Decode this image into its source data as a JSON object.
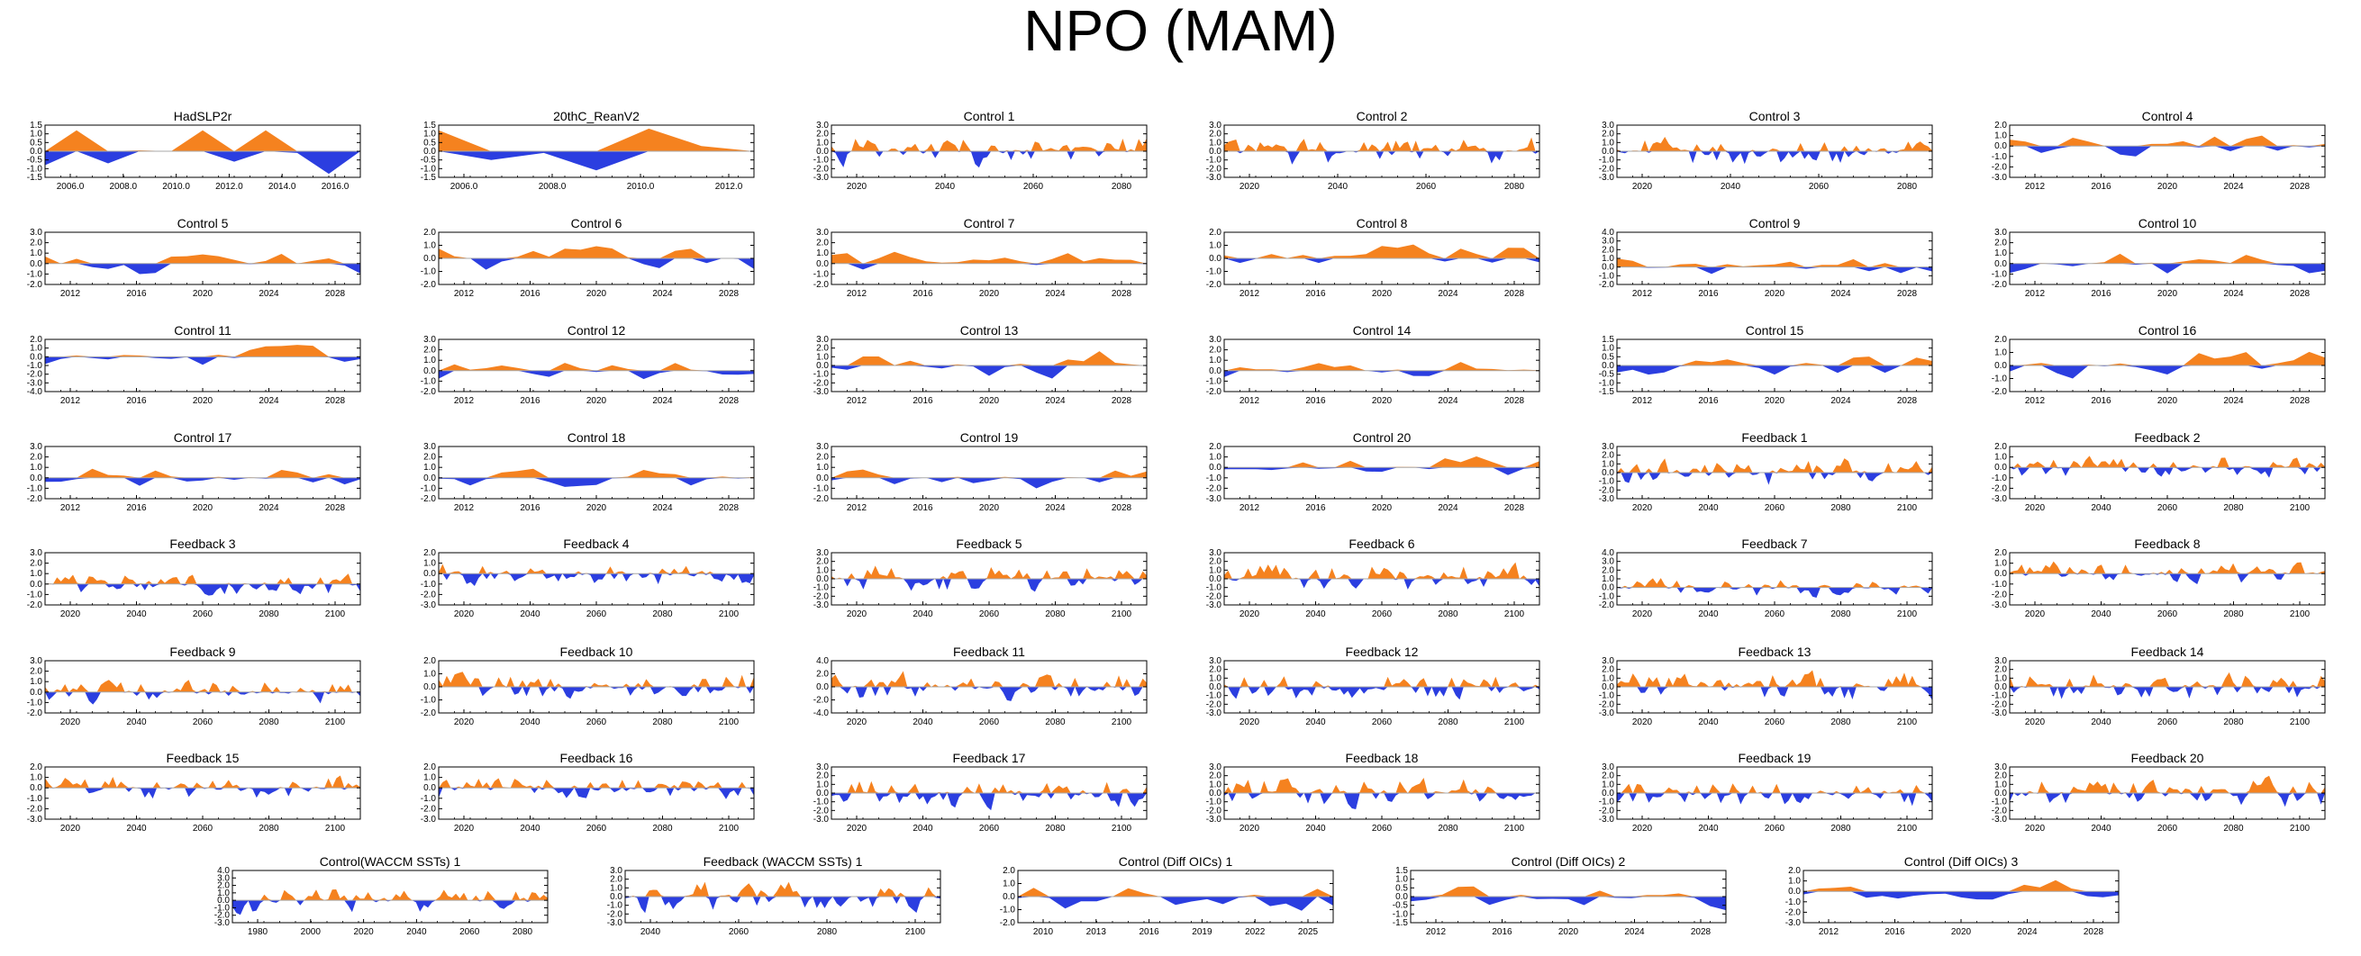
{
  "title": "NPO (MAM)",
  "colors": {
    "positive": "#f5821f",
    "negative": "#2b3ee0",
    "axis": "#000000",
    "zero_line": "#a9a9a9"
  },
  "chart_data": [
    {
      "type": "area",
      "title": "HadSLP2r",
      "x_ticks": [
        "2006.0",
        "2008.0",
        "2010.0",
        "2012.0",
        "2014.0",
        "2016.0"
      ],
      "y_ticks": [
        "1.5",
        "1.0",
        "0.5",
        "0.0",
        "-0.5",
        "-1.0",
        "-1.5"
      ],
      "ylim": [
        -1.5,
        1.5
      ],
      "values": [
        -0.8,
        1.2,
        -0.7,
        0.05,
        0.0,
        1.2,
        -0.6,
        1.2,
        -0.1,
        -1.3,
        0.0
      ]
    },
    {
      "type": "area",
      "title": "20thC_ReanV2",
      "x_ticks": [
        "2006.0",
        "2008.0",
        "2010.0",
        "2012.0"
      ],
      "y_ticks": [
        "1.5",
        "1.0",
        "0.5",
        "0.0",
        "-0.5",
        "-1.0",
        "-1.5"
      ],
      "ylim": [
        -1.5,
        1.5
      ],
      "values": [
        1.2,
        -0.5,
        -0.1,
        -1.1,
        1.3,
        0.3,
        0.0
      ]
    },
    {
      "type": "area",
      "title": "Control 1",
      "x_ticks": [
        "2020",
        "2040",
        "2060",
        "2080"
      ],
      "y_ticks": [
        "3.0",
        "2.0",
        "1.0",
        "0.0",
        "-1.0",
        "-2.0",
        "-3.0"
      ],
      "ylim": [
        -3,
        3
      ],
      "values": []
    },
    {
      "type": "area",
      "title": "Control 2",
      "x_ticks": [
        "2020",
        "2040",
        "2060",
        "2080"
      ],
      "y_ticks": [
        "3.0",
        "2.0",
        "1.0",
        "0.0",
        "-1.0",
        "-2.0",
        "-3.0"
      ],
      "ylim": [
        -3,
        3
      ],
      "values": []
    },
    {
      "type": "area",
      "title": "Control 3",
      "x_ticks": [
        "2020",
        "2040",
        "2060",
        "2080"
      ],
      "y_ticks": [
        "3.0",
        "2.0",
        "1.0",
        "0.0",
        "-1.0",
        "-2.0",
        "-3.0"
      ],
      "ylim": [
        -3,
        3
      ],
      "values": []
    },
    {
      "type": "area",
      "title": "Control 4",
      "x_ticks": [
        "2012",
        "2016",
        "2020",
        "2024",
        "2028"
      ],
      "y_ticks": [
        "2.0",
        "1.0",
        "0.0",
        "-1.0",
        "-2.0",
        "-3.0"
      ],
      "ylim": [
        -3,
        2
      ],
      "values": []
    },
    {
      "type": "area",
      "title": "Control 5",
      "x_ticks": [
        "2012",
        "2016",
        "2020",
        "2024",
        "2028"
      ],
      "y_ticks": [
        "3.0",
        "2.0",
        "1.0",
        "0.0",
        "-1.0",
        "-2.0"
      ],
      "ylim": [
        -2,
        3
      ],
      "values": []
    },
    {
      "type": "area",
      "title": "Control 6",
      "x_ticks": [
        "2012",
        "2016",
        "2020",
        "2024",
        "2028"
      ],
      "y_ticks": [
        "2.0",
        "1.0",
        "0.0",
        "-1.0",
        "-2.0"
      ],
      "ylim": [
        -2,
        2
      ],
      "values": []
    },
    {
      "type": "area",
      "title": "Control 7",
      "x_ticks": [
        "2012",
        "2016",
        "2020",
        "2024",
        "2028"
      ],
      "y_ticks": [
        "3.0",
        "2.0",
        "1.0",
        "0.0",
        "-1.0",
        "-2.0"
      ],
      "ylim": [
        -2,
        3
      ],
      "values": []
    },
    {
      "type": "area",
      "title": "Control 8",
      "x_ticks": [
        "2012",
        "2016",
        "2020",
        "2024",
        "2028"
      ],
      "y_ticks": [
        "2.0",
        "1.0",
        "0.0",
        "-1.0",
        "-2.0"
      ],
      "ylim": [
        -2,
        2
      ],
      "values": []
    },
    {
      "type": "area",
      "title": "Control 9",
      "x_ticks": [
        "2012",
        "2016",
        "2020",
        "2024",
        "2028"
      ],
      "y_ticks": [
        "4.0",
        "3.0",
        "2.0",
        "1.0",
        "0.0",
        "-1.0",
        "-2.0"
      ],
      "ylim": [
        -2,
        4
      ],
      "values": []
    },
    {
      "type": "area",
      "title": "Control 10",
      "x_ticks": [
        "2012",
        "2016",
        "2020",
        "2024",
        "2028"
      ],
      "y_ticks": [
        "3.0",
        "2.0",
        "1.0",
        "0.0",
        "-1.0",
        "-2.0"
      ],
      "ylim": [
        -2,
        3
      ],
      "values": []
    },
    {
      "type": "area",
      "title": "Control 11",
      "x_ticks": [
        "2012",
        "2016",
        "2020",
        "2024",
        "2028"
      ],
      "y_ticks": [
        "2.0",
        "1.0",
        "0.0",
        "-1.0",
        "-2.0",
        "-3.0",
        "-4.0"
      ],
      "ylim": [
        -4,
        2
      ],
      "values": []
    },
    {
      "type": "area",
      "title": "Control 12",
      "x_ticks": [
        "2012",
        "2016",
        "2020",
        "2024",
        "2028"
      ],
      "y_ticks": [
        "3.0",
        "2.0",
        "1.0",
        "0.0",
        "-1.0",
        "-2.0"
      ],
      "ylim": [
        -2,
        3
      ],
      "values": []
    },
    {
      "type": "area",
      "title": "Control 13",
      "x_ticks": [
        "2012",
        "2016",
        "2020",
        "2024",
        "2028"
      ],
      "y_ticks": [
        "3.0",
        "2.0",
        "1.0",
        "0.0",
        "-1.0",
        "-2.0",
        "-3.0"
      ],
      "ylim": [
        -3,
        3
      ],
      "values": []
    },
    {
      "type": "area",
      "title": "Control 14",
      "x_ticks": [
        "2012",
        "2016",
        "2020",
        "2024",
        "2028"
      ],
      "y_ticks": [
        "3.0",
        "2.0",
        "1.0",
        "0.0",
        "-1.0",
        "-2.0"
      ],
      "ylim": [
        -2,
        3
      ],
      "values": []
    },
    {
      "type": "area",
      "title": "Control 15",
      "x_ticks": [
        "2012",
        "2016",
        "2020",
        "2024",
        "2028"
      ],
      "y_ticks": [
        "1.5",
        "1.0",
        "0.5",
        "0.0",
        "-0.5",
        "-1.0",
        "-1.5"
      ],
      "ylim": [
        -1.5,
        1.5
      ],
      "values": []
    },
    {
      "type": "area",
      "title": "Control 16",
      "x_ticks": [
        "2012",
        "2016",
        "2020",
        "2024",
        "2028"
      ],
      "y_ticks": [
        "2.0",
        "1.0",
        "0.0",
        "-1.0",
        "-2.0"
      ],
      "ylim": [
        -2,
        2
      ],
      "values": []
    },
    {
      "type": "area",
      "title": "Control 17",
      "x_ticks": [
        "2012",
        "2016",
        "2020",
        "2024",
        "2028"
      ],
      "y_ticks": [
        "3.0",
        "2.0",
        "1.0",
        "0.0",
        "-1.0",
        "-2.0"
      ],
      "ylim": [
        -2,
        3
      ],
      "values": []
    },
    {
      "type": "area",
      "title": "Control 18",
      "x_ticks": [
        "2012",
        "2016",
        "2020",
        "2024",
        "2028"
      ],
      "y_ticks": [
        "3.0",
        "2.0",
        "1.0",
        "0.0",
        "-1.0",
        "-2.0"
      ],
      "ylim": [
        -2,
        3
      ],
      "values": []
    },
    {
      "type": "area",
      "title": "Control 19",
      "x_ticks": [
        "2012",
        "2016",
        "2020",
        "2024",
        "2028"
      ],
      "y_ticks": [
        "3.0",
        "2.0",
        "1.0",
        "0.0",
        "-1.0",
        "-2.0"
      ],
      "ylim": [
        -2,
        3
      ],
      "values": []
    },
    {
      "type": "area",
      "title": "Control 20",
      "x_ticks": [
        "2012",
        "2016",
        "2020",
        "2024",
        "2028"
      ],
      "y_ticks": [
        "2.0",
        "1.0",
        "0.0",
        "-1.0",
        "-2.0",
        "-3.0"
      ],
      "ylim": [
        -3,
        2
      ],
      "values": []
    },
    {
      "type": "area",
      "title": "Feedback 1",
      "x_ticks": [
        "2020",
        "2040",
        "2060",
        "2080",
        "2100"
      ],
      "y_ticks": [
        "3.0",
        "2.0",
        "1.0",
        "0.0",
        "-1.0",
        "-2.0",
        "-3.0"
      ],
      "ylim": [
        -3,
        3
      ],
      "values": []
    },
    {
      "type": "area",
      "title": "Feedback 2",
      "x_ticks": [
        "2020",
        "2040",
        "2060",
        "2080",
        "2100"
      ],
      "y_ticks": [
        "2.0",
        "1.0",
        "0.0",
        "-1.0",
        "-2.0",
        "-3.0"
      ],
      "ylim": [
        -3,
        2
      ],
      "values": []
    },
    {
      "type": "area",
      "title": "Feedback 3",
      "x_ticks": [
        "2020",
        "2040",
        "2060",
        "2080",
        "2100"
      ],
      "y_ticks": [
        "3.0",
        "2.0",
        "1.0",
        "0.0",
        "-1.0",
        "-2.0"
      ],
      "ylim": [
        -2,
        3
      ],
      "values": []
    },
    {
      "type": "area",
      "title": "Feedback 4",
      "x_ticks": [
        "2020",
        "2040",
        "2060",
        "2080",
        "2100"
      ],
      "y_ticks": [
        "2.0",
        "1.0",
        "0.0",
        "-1.0",
        "-2.0",
        "-3.0"
      ],
      "ylim": [
        -3,
        2
      ],
      "values": []
    },
    {
      "type": "area",
      "title": "Feedback 5",
      "x_ticks": [
        "2020",
        "2040",
        "2060",
        "2080",
        "2100"
      ],
      "y_ticks": [
        "3.0",
        "2.0",
        "1.0",
        "0.0",
        "-1.0",
        "-2.0",
        "-3.0"
      ],
      "ylim": [
        -3,
        3
      ],
      "values": []
    },
    {
      "type": "area",
      "title": "Feedback 6",
      "x_ticks": [
        "2020",
        "2040",
        "2060",
        "2080",
        "2100"
      ],
      "y_ticks": [
        "3.0",
        "2.0",
        "1.0",
        "0.0",
        "-1.0",
        "-2.0",
        "-3.0"
      ],
      "ylim": [
        -3,
        3
      ],
      "values": []
    },
    {
      "type": "area",
      "title": "Feedback 7",
      "x_ticks": [
        "2020",
        "2040",
        "2060",
        "2080",
        "2100"
      ],
      "y_ticks": [
        "4.0",
        "3.0",
        "2.0",
        "1.0",
        "0.0",
        "-1.0",
        "-2.0"
      ],
      "ylim": [
        -2,
        4
      ],
      "values": []
    },
    {
      "type": "area",
      "title": "Feedback 8",
      "x_ticks": [
        "2020",
        "2040",
        "2060",
        "2080",
        "2100"
      ],
      "y_ticks": [
        "2.0",
        "1.0",
        "0.0",
        "-1.0",
        "-2.0",
        "-3.0"
      ],
      "ylim": [
        -3,
        2
      ],
      "values": []
    },
    {
      "type": "area",
      "title": "Feedback 9",
      "x_ticks": [
        "2020",
        "2040",
        "2060",
        "2080",
        "2100"
      ],
      "y_ticks": [
        "3.0",
        "2.0",
        "1.0",
        "0.0",
        "-1.0",
        "-2.0"
      ],
      "ylim": [
        -2,
        3
      ],
      "values": []
    },
    {
      "type": "area",
      "title": "Feedback 10",
      "x_ticks": [
        "2020",
        "2040",
        "2060",
        "2080",
        "2100"
      ],
      "y_ticks": [
        "2.0",
        "1.0",
        "0.0",
        "-1.0",
        "-2.0"
      ],
      "ylim": [
        -2,
        2
      ],
      "values": []
    },
    {
      "type": "area",
      "title": "Feedback 11",
      "x_ticks": [
        "2020",
        "2040",
        "2060",
        "2080",
        "2100"
      ],
      "y_ticks": [
        "4.0",
        "2.0",
        "0.0",
        "-2.0",
        "-4.0"
      ],
      "ylim": [
        -4,
        4
      ],
      "values": []
    },
    {
      "type": "area",
      "title": "Feedback 12",
      "x_ticks": [
        "2020",
        "2040",
        "2060",
        "2080",
        "2100"
      ],
      "y_ticks": [
        "3.0",
        "2.0",
        "1.0",
        "0.0",
        "-1.0",
        "-2.0",
        "-3.0"
      ],
      "ylim": [
        -3,
        3
      ],
      "values": []
    },
    {
      "type": "area",
      "title": "Feedback 13",
      "x_ticks": [
        "2020",
        "2040",
        "2060",
        "2080",
        "2100"
      ],
      "y_ticks": [
        "3.0",
        "2.0",
        "1.0",
        "0.0",
        "-1.0",
        "-2.0",
        "-3.0"
      ],
      "ylim": [
        -3,
        3
      ],
      "values": []
    },
    {
      "type": "area",
      "title": "Feedback 14",
      "x_ticks": [
        "2020",
        "2040",
        "2060",
        "2080",
        "2100"
      ],
      "y_ticks": [
        "3.0",
        "2.0",
        "1.0",
        "0.0",
        "-1.0",
        "-2.0",
        "-3.0"
      ],
      "ylim": [
        -3,
        3
      ],
      "values": []
    },
    {
      "type": "area",
      "title": "Feedback 15",
      "x_ticks": [
        "2020",
        "2040",
        "2060",
        "2080",
        "2100"
      ],
      "y_ticks": [
        "2.0",
        "1.0",
        "0.0",
        "-1.0",
        "-2.0",
        "-3.0"
      ],
      "ylim": [
        -3,
        2
      ],
      "values": []
    },
    {
      "type": "area",
      "title": "Feedback 16",
      "x_ticks": [
        "2020",
        "2040",
        "2060",
        "2080",
        "2100"
      ],
      "y_ticks": [
        "2.0",
        "1.0",
        "0.0",
        "-1.0",
        "-2.0",
        "-3.0"
      ],
      "ylim": [
        -3,
        2
      ],
      "values": []
    },
    {
      "type": "area",
      "title": "Feedback 17",
      "x_ticks": [
        "2020",
        "2040",
        "2060",
        "2080",
        "2100"
      ],
      "y_ticks": [
        "3.0",
        "2.0",
        "1.0",
        "0.0",
        "-1.0",
        "-2.0",
        "-3.0"
      ],
      "ylim": [
        -3,
        3
      ],
      "values": []
    },
    {
      "type": "area",
      "title": "Feedback 18",
      "x_ticks": [
        "2020",
        "2040",
        "2060",
        "2080",
        "2100"
      ],
      "y_ticks": [
        "3.0",
        "2.0",
        "1.0",
        "0.0",
        "-1.0",
        "-2.0",
        "-3.0"
      ],
      "ylim": [
        -3,
        3
      ],
      "values": []
    },
    {
      "type": "area",
      "title": "Feedback 19",
      "x_ticks": [
        "2020",
        "2040",
        "2060",
        "2080",
        "2100"
      ],
      "y_ticks": [
        "3.0",
        "2.0",
        "1.0",
        "0.0",
        "-1.0",
        "-2.0",
        "-3.0"
      ],
      "ylim": [
        -3,
        3
      ],
      "values": []
    },
    {
      "type": "area",
      "title": "Feedback 20",
      "x_ticks": [
        "2020",
        "2040",
        "2060",
        "2080",
        "2100"
      ],
      "y_ticks": [
        "3.0",
        "2.0",
        "1.0",
        "0.0",
        "-1.0",
        "-2.0",
        "-3.0"
      ],
      "ylim": [
        -3,
        3
      ],
      "values": []
    },
    {
      "type": "area",
      "title": "Control(WACCM SSTs) 1",
      "x_ticks": [
        "1980",
        "2000",
        "2020",
        "2040",
        "2060",
        "2080"
      ],
      "y_ticks": [
        "4.0",
        "3.0",
        "2.0",
        "1.0",
        "0.0",
        "-1.0",
        "-2.0",
        "-3.0"
      ],
      "ylim": [
        -3,
        4
      ],
      "values": []
    },
    {
      "type": "area",
      "title": "Feedback (WACCM SSTs) 1",
      "x_ticks": [
        "2040",
        "2060",
        "2080",
        "2100"
      ],
      "y_ticks": [
        "3.0",
        "2.0",
        "1.0",
        "0.0",
        "-1.0",
        "-2.0",
        "-3.0"
      ],
      "ylim": [
        -3,
        3
      ],
      "values": []
    },
    {
      "type": "area",
      "title": "Control (Diff OICs) 1",
      "x_ticks": [
        "2010",
        "2013",
        "2016",
        "2019",
        "2022",
        "2025"
      ],
      "y_ticks": [
        "2.0",
        "1.0",
        "0.0",
        "-1.0",
        "-2.0"
      ],
      "ylim": [
        -2,
        2
      ],
      "values": []
    },
    {
      "type": "area",
      "title": "Control (Diff OICs) 2",
      "x_ticks": [
        "2012",
        "2016",
        "2020",
        "2024",
        "2028"
      ],
      "y_ticks": [
        "1.5",
        "1.0",
        "0.5",
        "0.0",
        "-0.5",
        "-1.0",
        "-1.5"
      ],
      "ylim": [
        -1.5,
        1.5
      ],
      "values": []
    },
    {
      "type": "area",
      "title": "Control (Diff OICs) 3",
      "x_ticks": [
        "2012",
        "2016",
        "2020",
        "2024",
        "2028"
      ],
      "y_ticks": [
        "2.0",
        "1.0",
        "0.0",
        "-1.0",
        "-2.0",
        "-3.0"
      ],
      "ylim": [
        -3,
        2
      ],
      "values": []
    }
  ]
}
